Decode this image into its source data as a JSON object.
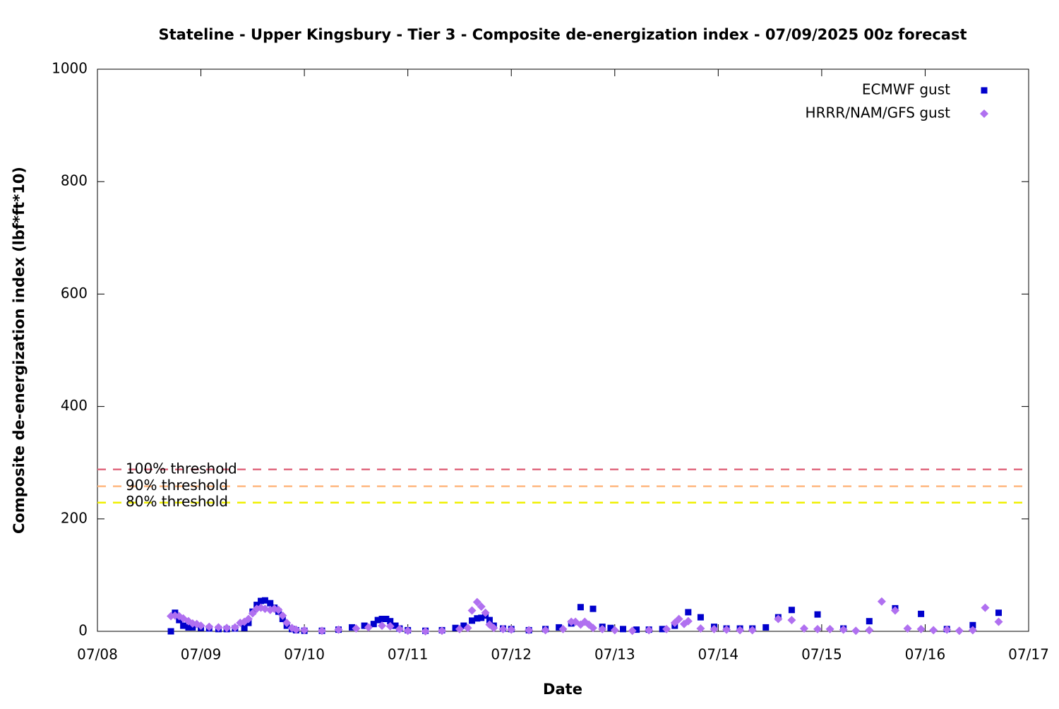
{
  "chart_data": {
    "type": "scatter",
    "title": "Stateline - Upper Kingsbury - Tier 3 - Composite de-energization index - 07/09/2025 00z forecast",
    "x_label": "Date",
    "y_label": "Composite de-energization index (lbf*ft*10)",
    "xlim": [
      8,
      17
    ],
    "xticks": [
      {
        "value": 8,
        "label": "07/08"
      },
      {
        "value": 9,
        "label": "07/09"
      },
      {
        "value": 10,
        "label": "07/10"
      },
      {
        "value": 11,
        "label": "07/11"
      },
      {
        "value": 12,
        "label": "07/12"
      },
      {
        "value": 13,
        "label": "07/13"
      },
      {
        "value": 14,
        "label": "07/14"
      },
      {
        "value": 15,
        "label": "07/15"
      },
      {
        "value": 16,
        "label": "07/16"
      },
      {
        "value": 17,
        "label": "07/17"
      }
    ],
    "ylim": [
      0,
      1000
    ],
    "yticks": [
      0,
      200,
      400,
      600,
      800,
      1000
    ],
    "legend": "top-right",
    "thresholds": [
      {
        "name": "100% threshold",
        "value": 288,
        "color": "#e06a80"
      },
      {
        "name": "90% threshold",
        "value": 258,
        "color": "#ffb880"
      },
      {
        "name": "80% threshold",
        "value": 229,
        "color": "#f0f000"
      }
    ],
    "series": [
      {
        "name": "ECMWF gust",
        "color": "#0000cc",
        "marker": "square",
        "x": [
          8.71,
          8.75,
          8.79,
          8.83,
          8.88,
          8.92,
          9.0,
          9.08,
          9.17,
          9.25,
          9.33,
          9.42,
          9.46,
          9.5,
          9.54,
          9.58,
          9.62,
          9.67,
          9.71,
          9.75,
          9.79,
          9.83,
          9.88,
          9.92,
          10.0,
          10.17,
          10.33,
          10.46,
          10.58,
          10.67,
          10.71,
          10.75,
          10.79,
          10.83,
          10.88,
          10.92,
          11.0,
          11.17,
          11.33,
          11.46,
          11.54,
          11.62,
          11.67,
          11.71,
          11.75,
          11.79,
          11.83,
          11.92,
          12.0,
          12.17,
          12.33,
          12.46,
          12.58,
          12.67,
          12.79,
          12.88,
          12.96,
          13.08,
          13.21,
          13.33,
          13.46,
          13.58,
          13.71,
          13.83,
          13.96,
          14.08,
          14.21,
          14.33,
          14.46,
          14.58,
          14.71,
          14.96,
          15.21,
          15.46,
          15.71,
          15.96,
          16.21,
          16.46,
          16.71
        ],
        "values": [
          0,
          33,
          20,
          10,
          7,
          7,
          6,
          5,
          4,
          4,
          5,
          6,
          15,
          35,
          47,
          54,
          55,
          50,
          42,
          35,
          22,
          10,
          4,
          2,
          1,
          1,
          3,
          7,
          10,
          13,
          20,
          22,
          22,
          18,
          10,
          5,
          2,
          1,
          2,
          6,
          10,
          19,
          23,
          24,
          28,
          20,
          10,
          5,
          4,
          2,
          4,
          7,
          14,
          43,
          40,
          8,
          6,
          4,
          3,
          3,
          4,
          10,
          34,
          25,
          8,
          5,
          5,
          5,
          7,
          25,
          38,
          30,
          5,
          18,
          41,
          31,
          4,
          11,
          33
        ]
      },
      {
        "name": "HRRR/NAM/GFS gust",
        "color": "#b070f0",
        "marker": "diamond",
        "x": [
          8.71,
          8.75,
          8.79,
          8.83,
          8.88,
          8.92,
          8.96,
          9.0,
          9.08,
          9.17,
          9.25,
          9.33,
          9.38,
          9.42,
          9.46,
          9.5,
          9.54,
          9.58,
          9.62,
          9.67,
          9.71,
          9.75,
          9.79,
          9.83,
          9.88,
          9.92,
          10.0,
          10.17,
          10.33,
          10.5,
          10.62,
          10.75,
          10.83,
          10.92,
          11.0,
          11.17,
          11.33,
          11.5,
          11.58,
          11.62,
          11.67,
          11.71,
          11.75,
          11.79,
          11.83,
          11.92,
          12.0,
          12.17,
          12.33,
          12.5,
          12.58,
          12.62,
          12.67,
          12.71,
          12.75,
          12.79,
          12.88,
          13.0,
          13.17,
          13.33,
          13.5,
          13.58,
          13.62,
          13.67,
          13.71,
          13.83,
          13.96,
          14.08,
          14.21,
          14.33,
          14.58,
          14.71,
          14.83,
          14.96,
          15.08,
          15.21,
          15.33,
          15.46,
          15.58,
          15.71,
          15.83,
          15.96,
          16.08,
          16.21,
          16.33,
          16.46,
          16.58,
          16.71
        ],
        "values": [
          27,
          28,
          27,
          23,
          18,
          14,
          13,
          10,
          8,
          7,
          6,
          7,
          15,
          17,
          22,
          32,
          40,
          42,
          40,
          38,
          40,
          38,
          28,
          15,
          6,
          3,
          2,
          1,
          3,
          5,
          7,
          10,
          9,
          4,
          1,
          0,
          1,
          4,
          6,
          37,
          52,
          44,
          33,
          12,
          6,
          4,
          3,
          2,
          2,
          4,
          17,
          17,
          12,
          17,
          12,
          6,
          4,
          2,
          1,
          2,
          4,
          15,
          22,
          13,
          18,
          5,
          4,
          3,
          2,
          2,
          22,
          20,
          5,
          4,
          4,
          3,
          1,
          2,
          53,
          37,
          5,
          4,
          2,
          3,
          1,
          2,
          42,
          17
        ]
      }
    ]
  }
}
